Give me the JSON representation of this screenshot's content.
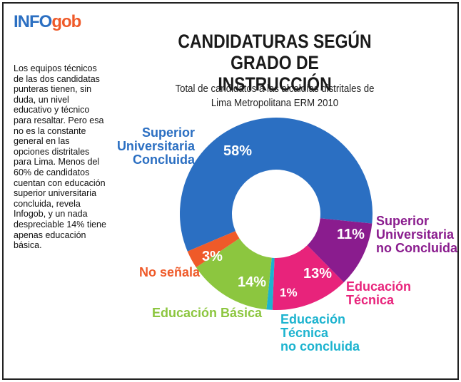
{
  "logo": {
    "part1": "INFO",
    "part2": "gob"
  },
  "sidebar_text": "Los equipos técnicos de las dos candidatas punteras tienen, sin duda, un nivel educativo y técnico para resaltar. Pero esa no es la constante general en las opciones distritales para Lima. Menos del 60% de candidatos cuentan con educación superior universitaria concluida, revela Infogob, y un nada despreciable 14% tiene apenas educación básica.",
  "chart_data": {
    "type": "donut",
    "title": "CANDIDATURAS SEGÚN\nGRADO DE INSTRUCCIÓN",
    "subtitle": "Total de candidatos a las alcaldías distritales de\nLima Metropolitana ERM 2010",
    "categories": [
      "Superior\nUniversitaria\nConcluida",
      "Superior\nUniversitaria\nno Concluida",
      "Educación\nTécnica",
      "Educación\nTécnica\nno concluida",
      "Educación Básica",
      "No señala"
    ],
    "values": [
      58,
      11,
      13,
      1,
      14,
      3
    ],
    "value_labels": [
      "58%",
      "11%",
      "13%",
      "1%",
      "14%",
      "3%"
    ],
    "colors": [
      "#2b6fc2",
      "#8a1c8e",
      "#e8237b",
      "#1cb3cf",
      "#8cc63f",
      "#ef5a29"
    ]
  }
}
